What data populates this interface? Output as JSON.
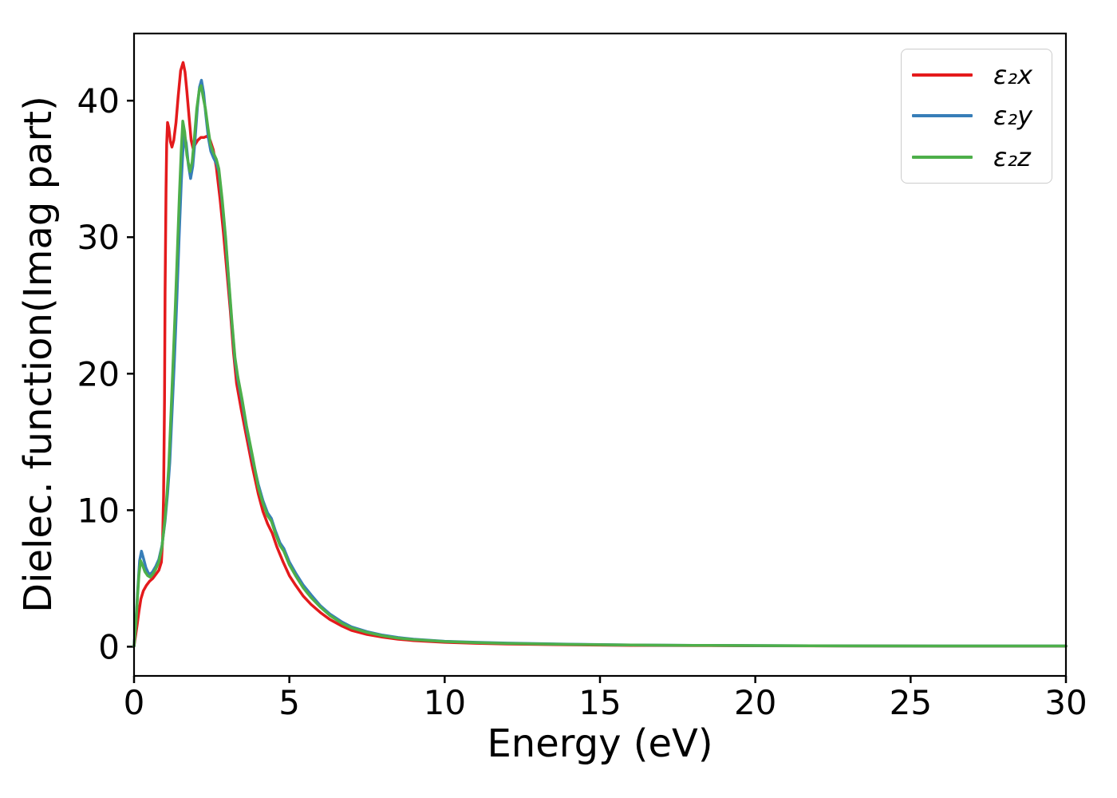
{
  "figure": {
    "xlabel": "Energy (eV)",
    "ylabel": "Dielec. function(Imag part)"
  },
  "chart_data": {
    "type": "line",
    "title": "",
    "xlabel": "Energy (eV)",
    "ylabel": "Dielec. function(Imag part)",
    "xlim": [
      0,
      30
    ],
    "ylim": [
      -2.14,
      44.92
    ],
    "xticks": [
      0,
      5,
      10,
      15,
      20,
      25,
      30
    ],
    "yticks": [
      0,
      10,
      20,
      30,
      40
    ],
    "grid": false,
    "legend_position": "upper right",
    "series": [
      {
        "name": "ε₂x",
        "color": "#e41a1c",
        "points": [
          [
            0,
            0.05
          ],
          [
            0.05,
            0.8
          ],
          [
            0.1,
            1.6
          ],
          [
            0.16,
            2.6
          ],
          [
            0.22,
            3.5
          ],
          [
            0.3,
            4.1
          ],
          [
            0.4,
            4.5
          ],
          [
            0.5,
            4.8
          ],
          [
            0.6,
            5.0
          ],
          [
            0.7,
            5.3
          ],
          [
            0.8,
            5.6
          ],
          [
            0.88,
            6.2
          ],
          [
            0.92,
            7.8
          ],
          [
            0.95,
            11
          ],
          [
            0.98,
            18
          ],
          [
            1.0,
            26
          ],
          [
            1.03,
            33.5
          ],
          [
            1.05,
            36.8
          ],
          [
            1.08,
            38.4
          ],
          [
            1.12,
            38.0
          ],
          [
            1.17,
            37.0
          ],
          [
            1.22,
            36.6
          ],
          [
            1.28,
            37.1
          ],
          [
            1.35,
            38.4
          ],
          [
            1.42,
            40.3
          ],
          [
            1.5,
            42.2
          ],
          [
            1.58,
            42.8
          ],
          [
            1.64,
            42.1
          ],
          [
            1.7,
            40.7
          ],
          [
            1.78,
            38.6
          ],
          [
            1.84,
            37.1
          ],
          [
            1.9,
            36.5
          ],
          [
            1.97,
            36.8
          ],
          [
            2.05,
            37.1
          ],
          [
            2.15,
            37.3
          ],
          [
            2.25,
            37.3
          ],
          [
            2.35,
            37.4
          ],
          [
            2.45,
            37.1
          ],
          [
            2.55,
            36.4
          ],
          [
            2.65,
            35.1
          ],
          [
            2.77,
            32.8
          ],
          [
            2.88,
            30.3
          ],
          [
            3.0,
            27.2
          ],
          [
            3.1,
            24.6
          ],
          [
            3.2,
            21.6
          ],
          [
            3.3,
            19.3
          ],
          [
            3.45,
            17.4
          ],
          [
            3.6,
            15.6
          ],
          [
            3.8,
            13.3
          ],
          [
            4.0,
            11.2
          ],
          [
            4.15,
            9.9
          ],
          [
            4.3,
            9.0
          ],
          [
            4.45,
            8.3
          ],
          [
            4.6,
            7.3
          ],
          [
            4.8,
            6.2
          ],
          [
            5.0,
            5.2
          ],
          [
            5.2,
            4.5
          ],
          [
            5.45,
            3.7
          ],
          [
            5.7,
            3.1
          ],
          [
            6.0,
            2.5
          ],
          [
            6.3,
            2.0
          ],
          [
            6.7,
            1.5
          ],
          [
            7.0,
            1.2
          ],
          [
            7.5,
            0.9
          ],
          [
            8.0,
            0.7
          ],
          [
            8.5,
            0.55
          ],
          [
            9.0,
            0.45
          ],
          [
            10,
            0.32
          ],
          [
            11,
            0.25
          ],
          [
            12,
            0.2
          ],
          [
            14,
            0.14
          ],
          [
            16,
            0.1
          ],
          [
            18,
            0.08
          ],
          [
            20,
            0.07
          ],
          [
            23,
            0.05
          ],
          [
            26,
            0.04
          ],
          [
            30,
            0.04
          ]
        ]
      },
      {
        "name": "ε₂y",
        "color": "#377eb8",
        "points": [
          [
            0,
            0.05
          ],
          [
            0.06,
            1.8
          ],
          [
            0.12,
            4.2
          ],
          [
            0.18,
            6.3
          ],
          [
            0.24,
            7.0
          ],
          [
            0.3,
            6.5
          ],
          [
            0.38,
            5.8
          ],
          [
            0.46,
            5.4
          ],
          [
            0.52,
            5.3
          ],
          [
            0.6,
            5.5
          ],
          [
            0.7,
            5.9
          ],
          [
            0.8,
            6.4
          ],
          [
            0.9,
            7.4
          ],
          [
            1.0,
            9.2
          ],
          [
            1.08,
            11.2
          ],
          [
            1.15,
            13.5
          ],
          [
            1.22,
            17.0
          ],
          [
            1.3,
            21.0
          ],
          [
            1.38,
            25.5
          ],
          [
            1.45,
            30.0
          ],
          [
            1.52,
            34.0
          ],
          [
            1.57,
            36.2
          ],
          [
            1.62,
            37.5
          ],
          [
            1.68,
            36.9
          ],
          [
            1.75,
            35.3
          ],
          [
            1.82,
            34.3
          ],
          [
            1.89,
            35.2
          ],
          [
            1.96,
            37.0
          ],
          [
            2.04,
            39.5
          ],
          [
            2.11,
            41.0
          ],
          [
            2.17,
            41.5
          ],
          [
            2.24,
            40.6
          ],
          [
            2.31,
            39.0
          ],
          [
            2.39,
            37.3
          ],
          [
            2.47,
            36.3
          ],
          [
            2.56,
            35.8
          ],
          [
            2.65,
            35.4
          ],
          [
            2.73,
            34.8
          ],
          [
            2.84,
            32.5
          ],
          [
            2.95,
            29.7
          ],
          [
            3.05,
            26.7
          ],
          [
            3.15,
            23.7
          ],
          [
            3.25,
            21.0
          ],
          [
            3.34,
            19.6
          ],
          [
            3.48,
            17.9
          ],
          [
            3.62,
            16.0
          ],
          [
            3.82,
            13.7
          ],
          [
            4.0,
            11.9
          ],
          [
            4.15,
            10.7
          ],
          [
            4.3,
            9.8
          ],
          [
            4.42,
            9.4
          ],
          [
            4.55,
            8.5
          ],
          [
            4.7,
            7.6
          ],
          [
            4.82,
            7.2
          ],
          [
            5.0,
            6.2
          ],
          [
            5.2,
            5.4
          ],
          [
            5.45,
            4.5
          ],
          [
            5.7,
            3.8
          ],
          [
            6.0,
            3.0
          ],
          [
            6.3,
            2.4
          ],
          [
            6.7,
            1.8
          ],
          [
            7.0,
            1.45
          ],
          [
            7.5,
            1.1
          ],
          [
            8.0,
            0.85
          ],
          [
            8.5,
            0.67
          ],
          [
            9.0,
            0.55
          ],
          [
            10,
            0.4
          ],
          [
            11,
            0.32
          ],
          [
            12,
            0.26
          ],
          [
            14,
            0.18
          ],
          [
            16,
            0.13
          ],
          [
            18,
            0.1
          ],
          [
            20,
            0.08
          ],
          [
            23,
            0.06
          ],
          [
            26,
            0.05
          ],
          [
            30,
            0.05
          ]
        ]
      },
      {
        "name": "ε₂z",
        "color": "#4daf4a",
        "points": [
          [
            0,
            0.05
          ],
          [
            0.06,
            1.6
          ],
          [
            0.11,
            3.6
          ],
          [
            0.16,
            5.3
          ],
          [
            0.21,
            6.3
          ],
          [
            0.27,
            6.0
          ],
          [
            0.35,
            5.5
          ],
          [
            0.44,
            5.2
          ],
          [
            0.52,
            5.1
          ],
          [
            0.6,
            5.3
          ],
          [
            0.7,
            5.7
          ],
          [
            0.8,
            6.2
          ],
          [
            0.9,
            7.3
          ],
          [
            1.0,
            9.4
          ],
          [
            1.06,
            11.2
          ],
          [
            1.12,
            13.3
          ],
          [
            1.18,
            16.5
          ],
          [
            1.25,
            20.5
          ],
          [
            1.33,
            25.0
          ],
          [
            1.4,
            29.3
          ],
          [
            1.46,
            33.0
          ],
          [
            1.52,
            36.4
          ],
          [
            1.57,
            38.5
          ],
          [
            1.63,
            37.7
          ],
          [
            1.7,
            36.0
          ],
          [
            1.8,
            34.8
          ],
          [
            1.87,
            35.5
          ],
          [
            1.94,
            37.2
          ],
          [
            2.02,
            39.4
          ],
          [
            2.1,
            40.8
          ],
          [
            2.16,
            41.1
          ],
          [
            2.23,
            40.2
          ],
          [
            2.3,
            39.4
          ],
          [
            2.38,
            38.0
          ],
          [
            2.46,
            36.8
          ],
          [
            2.55,
            36.2
          ],
          [
            2.65,
            35.7
          ],
          [
            2.73,
            35.0
          ],
          [
            2.84,
            32.7
          ],
          [
            2.95,
            29.9
          ],
          [
            3.05,
            26.9
          ],
          [
            3.15,
            23.9
          ],
          [
            3.25,
            21.2
          ],
          [
            3.34,
            19.8
          ],
          [
            3.48,
            18.1
          ],
          [
            3.62,
            16.2
          ],
          [
            3.82,
            13.9
          ],
          [
            4.0,
            11.7
          ],
          [
            4.15,
            10.5
          ],
          [
            4.3,
            9.6
          ],
          [
            4.42,
            9.2
          ],
          [
            4.55,
            8.3
          ],
          [
            4.7,
            7.4
          ],
          [
            4.82,
            7.0
          ],
          [
            5.0,
            6.0
          ],
          [
            5.2,
            5.2
          ],
          [
            5.45,
            4.3
          ],
          [
            5.7,
            3.6
          ],
          [
            6.0,
            2.9
          ],
          [
            6.3,
            2.3
          ],
          [
            6.7,
            1.7
          ],
          [
            7.0,
            1.38
          ],
          [
            7.5,
            1.05
          ],
          [
            8.0,
            0.8
          ],
          [
            8.5,
            0.63
          ],
          [
            9.0,
            0.52
          ],
          [
            10,
            0.38
          ],
          [
            11,
            0.3
          ],
          [
            12,
            0.24
          ],
          [
            14,
            0.17
          ],
          [
            16,
            0.12
          ],
          [
            18,
            0.1
          ],
          [
            20,
            0.08
          ],
          [
            23,
            0.06
          ],
          [
            26,
            0.05
          ],
          [
            30,
            0.05
          ]
        ]
      }
    ]
  },
  "style": {
    "spine_color": "#000000",
    "tick_font_px": 42,
    "line_width": 3.5
  }
}
